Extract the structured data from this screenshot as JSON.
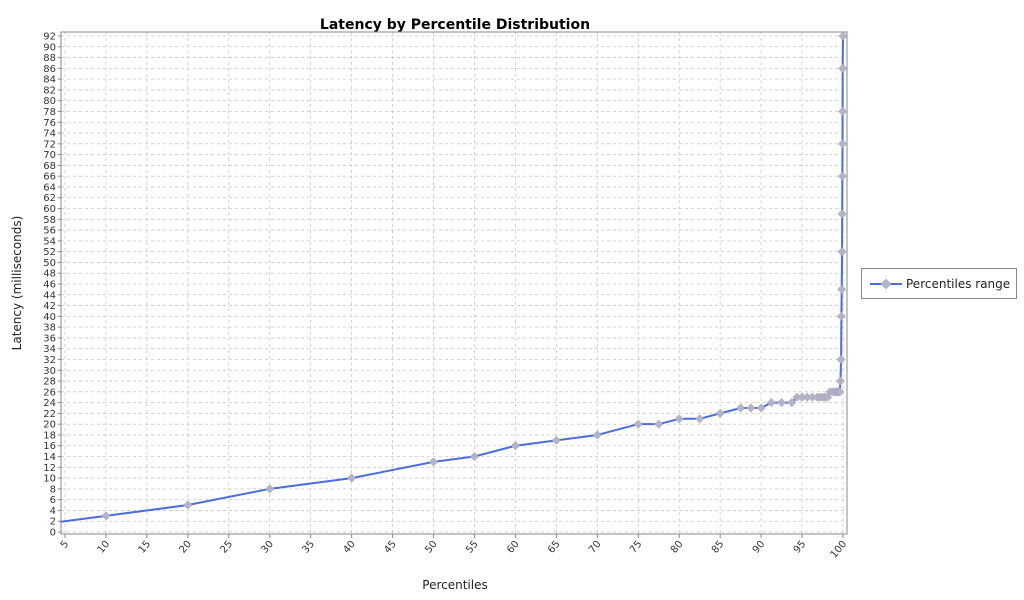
{
  "colors": {
    "series_line": "#4a6ee0",
    "marker_fill": "#b4b4c8",
    "grid": "#c8c8c8",
    "plot_border": "#888888",
    "background": "#ffffff"
  },
  "chart_data": {
    "type": "line",
    "title": "Latency by Percentile Distribution",
    "xlabel": "Percentiles",
    "ylabel": "Latency (milliseconds)",
    "xlim": [
      5,
      100
    ],
    "ylim": [
      0,
      92
    ],
    "grid": true,
    "legend_position": "right",
    "x_ticks": [
      5,
      10,
      15,
      20,
      25,
      30,
      35,
      40,
      45,
      50,
      55,
      60,
      65,
      70,
      75,
      80,
      85,
      90,
      95,
      100
    ],
    "y_ticks": [
      0,
      2,
      4,
      6,
      8,
      10,
      12,
      14,
      16,
      18,
      20,
      22,
      24,
      26,
      28,
      30,
      32,
      34,
      36,
      38,
      40,
      42,
      44,
      46,
      48,
      50,
      52,
      54,
      56,
      58,
      60,
      62,
      64,
      66,
      68,
      70,
      72,
      74,
      76,
      78,
      80,
      82,
      84,
      86,
      88,
      90,
      92
    ],
    "series": [
      {
        "name": "Percentiles range",
        "points": [
          [
            0,
            1
          ],
          [
            10,
            3
          ],
          [
            20,
            5
          ],
          [
            30,
            8
          ],
          [
            40,
            10
          ],
          [
            50,
            13
          ],
          [
            55,
            14
          ],
          [
            60,
            16
          ],
          [
            65,
            17
          ],
          [
            70,
            18
          ],
          [
            75,
            20
          ],
          [
            77.5,
            20
          ],
          [
            80,
            21
          ],
          [
            82.5,
            21
          ],
          [
            85,
            22
          ],
          [
            87.5,
            23
          ],
          [
            88.75,
            23
          ],
          [
            90,
            23
          ],
          [
            91.25,
            24
          ],
          [
            92.5,
            24
          ],
          [
            93.75,
            24
          ],
          [
            94.375,
            25
          ],
          [
            95,
            25
          ],
          [
            95.625,
            25
          ],
          [
            96.25,
            25
          ],
          [
            96.875,
            25
          ],
          [
            97.1875,
            25
          ],
          [
            97.5,
            25
          ],
          [
            97.8125,
            25
          ],
          [
            98.125,
            25
          ],
          [
            98.4375,
            26
          ],
          [
            98.75,
            26
          ],
          [
            99.0625,
            26
          ],
          [
            99.2188,
            26
          ],
          [
            99.375,
            26
          ],
          [
            99.5313,
            26
          ],
          [
            99.6094,
            26
          ],
          [
            99.6875,
            28
          ],
          [
            99.7656,
            32
          ],
          [
            99.8047,
            40
          ],
          [
            99.8438,
            45
          ],
          [
            99.8828,
            52
          ],
          [
            99.9023,
            59
          ],
          [
            99.9219,
            66
          ],
          [
            99.9414,
            72
          ],
          [
            99.9512,
            78
          ],
          [
            99.9609,
            86
          ],
          [
            100,
            92
          ]
        ]
      }
    ]
  }
}
